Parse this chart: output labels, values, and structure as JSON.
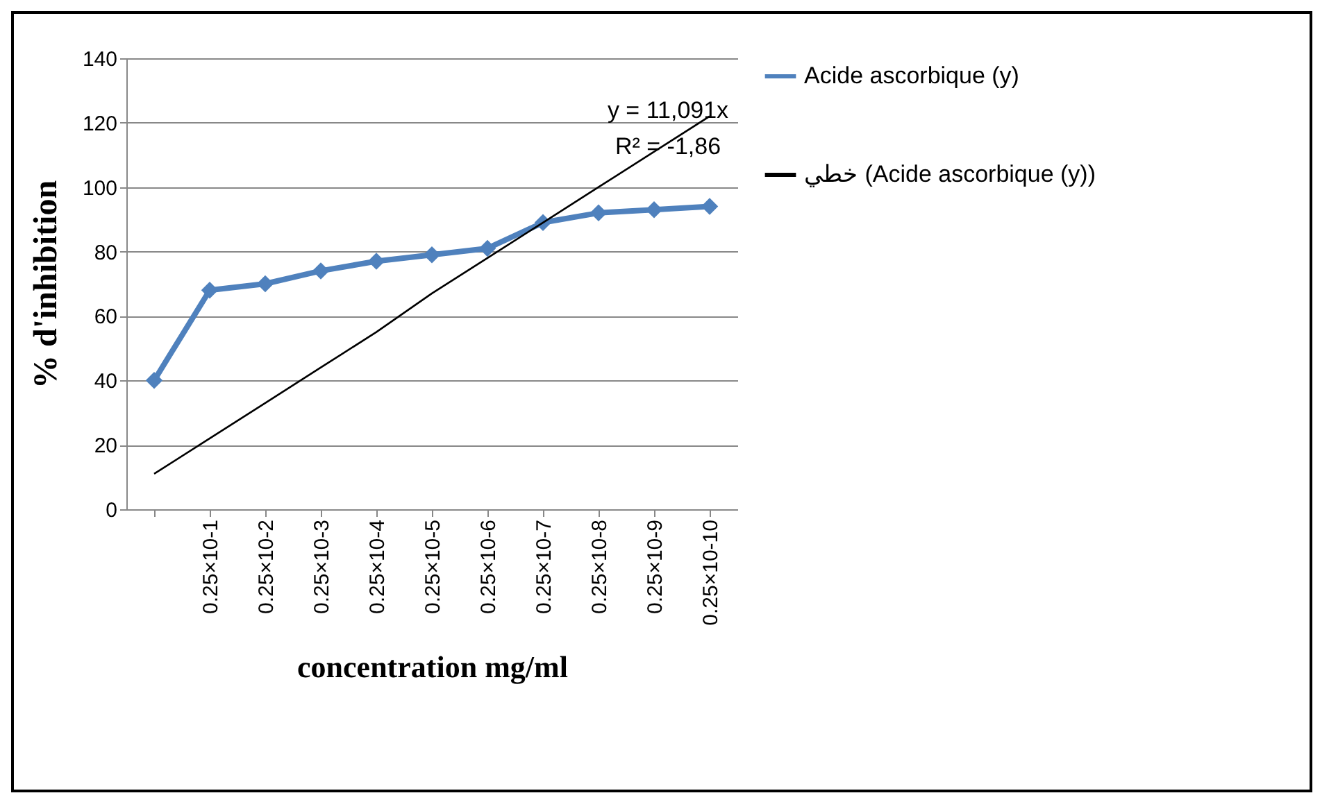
{
  "chart_data": {
    "type": "line",
    "xlabel": "concentration mg/ml",
    "ylabel": "% d'inhibition",
    "categories": [
      null,
      "0.25×10-1",
      "0.25×10-2",
      "0.25×10-3",
      "0.25×10-4",
      "0.25×10-5",
      "0.25×10-6",
      "0.25×10-7",
      "0.25×10-8",
      "0.25×10-9",
      "0.25×10-10"
    ],
    "series": [
      {
        "name": "Acide ascorbique (y)",
        "color": "#4f81bd",
        "marker": "diamond",
        "values": [
          40,
          68,
          70,
          74,
          77,
          79,
          81,
          89,
          92,
          93,
          94
        ]
      },
      {
        "name": "خطي (Acide ascorbique (y))",
        "color": "#000000",
        "marker": "none",
        "values": [
          11,
          22,
          33,
          44,
          55,
          67,
          78,
          89,
          100,
          111,
          122
        ]
      }
    ],
    "ylim": [
      0,
      140
    ],
    "yticks": [
      0,
      20,
      40,
      60,
      80,
      100,
      120,
      140
    ],
    "grid": "y",
    "legend": "right",
    "annotations": [
      "y = 11,091x",
      "R² = -1,86"
    ]
  }
}
